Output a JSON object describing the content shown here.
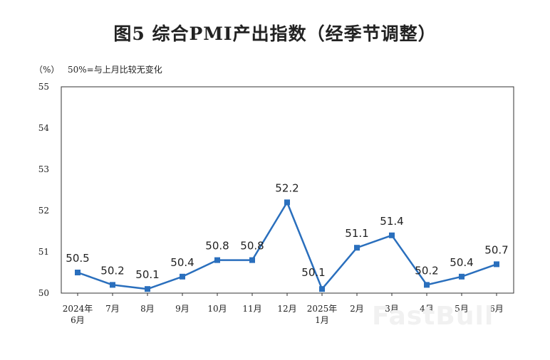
{
  "chart_data": {
    "type": "line",
    "title": "图5  综合PMI产出指数（经季节调整）",
    "unit_label": "（%）",
    "note": "50%=与上月比较无变化",
    "categories": [
      "2024年\n6月",
      "7月",
      "8月",
      "9月",
      "10月",
      "11月",
      "12月",
      "2025年\n1月",
      "2月",
      "3月",
      "4月",
      "5月",
      "6月"
    ],
    "values": [
      50.5,
      50.2,
      50.1,
      50.4,
      50.8,
      50.8,
      52.2,
      50.1,
      51.1,
      51.4,
      50.2,
      50.4,
      50.7
    ],
    "ylim": [
      50,
      55
    ],
    "yticks": [
      50,
      51,
      52,
      53,
      54,
      55
    ],
    "grid": false,
    "line_color": "#2a6fbd",
    "marker": "square"
  },
  "watermark": "FastBull"
}
